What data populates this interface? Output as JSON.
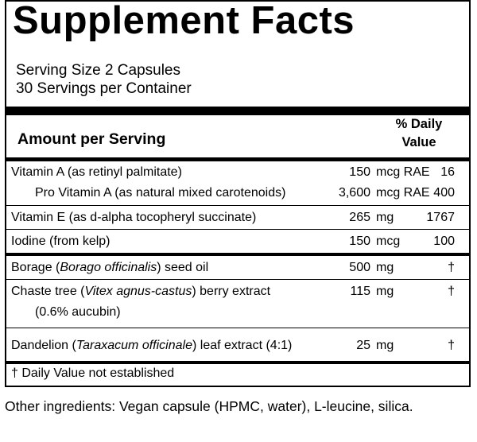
{
  "title": "Supplement Facts",
  "serving_size": "Serving Size 2 Capsules",
  "servings_per_container": "30 Servings per Container",
  "amount_per_serving": "Amount per Serving",
  "daily_value_header": "% Daily Value",
  "rows": [
    {
      "name": "Vitamin A (as retinyl palmitate)",
      "qty": "150",
      "unit": "mcg RAE",
      "dv": "16"
    },
    {
      "name": "Pro Vitamin A (as natural mixed carotenoids)",
      "qty": "3,600",
      "unit": "mcg RAE",
      "dv": "400"
    },
    {
      "name": "Vitamin E (as d-alpha tocopheryl succinate)",
      "qty": "265",
      "unit": "mg",
      "dv": "1767"
    },
    {
      "name": "Iodine (from kelp)",
      "qty": "150",
      "unit": "mcg",
      "dv": "100"
    },
    {
      "name_pre": "Borage (",
      "name_italic": "Borago officinalis",
      "name_post": ") seed oil",
      "qty": "500",
      "unit": "mg",
      "dv": "†"
    },
    {
      "name_pre": "Chaste tree (",
      "name_italic": "Vitex agnus-castus",
      "name_post": ") berry extract",
      "subline": "(0.6% aucubin)",
      "qty": "115",
      "unit": "mg",
      "dv": "†"
    },
    {
      "name_pre": "Dandelion (",
      "name_italic": "Taraxacum officinale",
      "name_post": ") leaf extract (4:1)",
      "qty": "25",
      "unit": "mg",
      "dv": "†"
    }
  ],
  "footnote": "† Daily Value not established",
  "other_ingredients": "Other ingredients: Vegan capsule (HPMC, water), L-leucine, silica."
}
